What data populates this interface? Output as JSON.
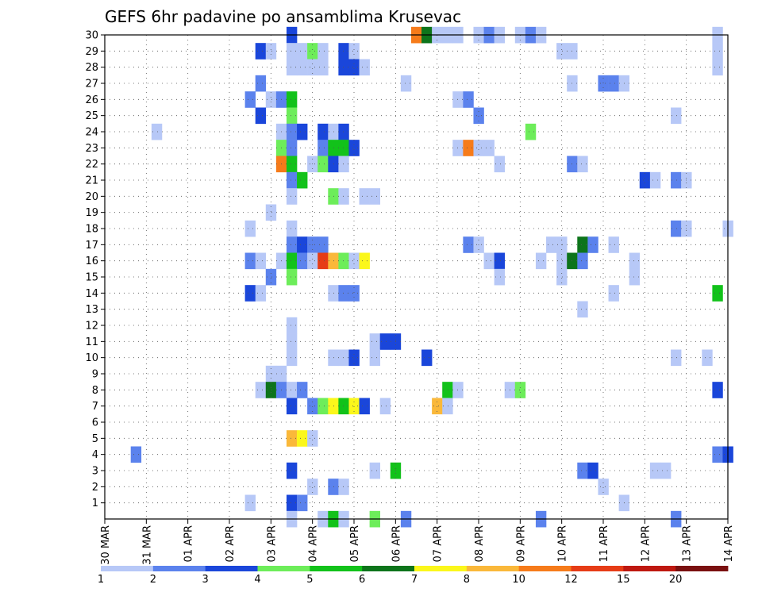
{
  "chart_data": {
    "type": "heatmap",
    "title": "GEFS 6hr padavine po ansamblima Krusevac",
    "xlabel": "",
    "ylabel": "",
    "grid": true,
    "x_range": [
      0,
      60
    ],
    "y_range": [
      0,
      30
    ],
    "x_ticks": [
      {
        "pos": 0,
        "label": "30 MAR"
      },
      {
        "pos": 4,
        "label": "31 MAR"
      },
      {
        "pos": 8,
        "label": "01 APR"
      },
      {
        "pos": 12,
        "label": "02 APR"
      },
      {
        "pos": 16,
        "label": "03 APR"
      },
      {
        "pos": 20,
        "label": "04 APR"
      },
      {
        "pos": 24,
        "label": "05 APR"
      },
      {
        "pos": 28,
        "label": "06 APR"
      },
      {
        "pos": 32,
        "label": "07 APR"
      },
      {
        "pos": 36,
        "label": "08 APR"
      },
      {
        "pos": 40,
        "label": "09 APR"
      },
      {
        "pos": 44,
        "label": "10 APR"
      },
      {
        "pos": 48,
        "label": "11 APR"
      },
      {
        "pos": 52,
        "label": "12 APR"
      },
      {
        "pos": 56,
        "label": "13 APR"
      },
      {
        "pos": 60,
        "label": "14 APR"
      }
    ],
    "y_ticks": [
      "1",
      "2",
      "3",
      "4",
      "5",
      "6",
      "7",
      "8",
      "9",
      "10",
      "11",
      "12",
      "13",
      "14",
      "15",
      "16",
      "17",
      "18",
      "19",
      "20",
      "21",
      "22",
      "23",
      "24",
      "25",
      "26",
      "27",
      "28",
      "29",
      "30"
    ],
    "legend": {
      "placement": "bottom",
      "colors": [
        "#b7c8f7",
        "#5b82ed",
        "#1a46da",
        "#6ded5a",
        "#12c21a",
        "#0d741b",
        "#fbf71b",
        "#fab83a",
        "#f67b1a",
        "#e63c16",
        "#be1810",
        "#7a1010"
      ],
      "labels": [
        "1",
        "2",
        "3",
        "4",
        "5",
        "6",
        "7",
        "8",
        "10",
        "12",
        "15",
        "20"
      ]
    },
    "cells": [
      [
        18,
        30,
        3
      ],
      [
        30,
        30,
        9
      ],
      [
        31,
        30,
        6
      ],
      [
        32,
        30,
        1
      ],
      [
        33,
        30,
        1
      ],
      [
        34,
        30,
        1
      ],
      [
        36,
        30,
        1
      ],
      [
        37,
        30,
        2
      ],
      [
        38,
        30,
        1
      ],
      [
        40,
        30,
        1
      ],
      [
        41,
        30,
        2
      ],
      [
        42,
        30,
        1
      ],
      [
        59,
        30,
        1
      ],
      [
        15,
        29,
        3
      ],
      [
        16,
        29,
        1
      ],
      [
        18,
        29,
        1
      ],
      [
        19,
        29,
        1
      ],
      [
        20,
        29,
        4
      ],
      [
        21,
        29,
        1
      ],
      [
        23,
        29,
        3
      ],
      [
        24,
        29,
        1
      ],
      [
        44,
        29,
        1
      ],
      [
        45,
        29,
        1
      ],
      [
        59,
        29,
        1
      ],
      [
        18,
        28,
        1
      ],
      [
        19,
        28,
        1
      ],
      [
        20,
        28,
        1
      ],
      [
        21,
        28,
        1
      ],
      [
        23,
        28,
        3
      ],
      [
        24,
        28,
        3
      ],
      [
        25,
        28,
        1
      ],
      [
        59,
        28,
        1
      ],
      [
        15,
        27,
        2
      ],
      [
        29,
        27,
        1
      ],
      [
        45,
        27,
        1
      ],
      [
        48,
        27,
        2
      ],
      [
        49,
        27,
        2
      ],
      [
        50,
        27,
        1
      ],
      [
        14,
        26,
        2
      ],
      [
        16,
        26,
        1
      ],
      [
        17,
        26,
        2
      ],
      [
        18,
        26,
        5
      ],
      [
        34,
        26,
        1
      ],
      [
        35,
        26,
        2
      ],
      [
        15,
        25,
        3
      ],
      [
        18,
        25,
        4
      ],
      [
        36,
        25,
        2
      ],
      [
        55,
        25,
        1
      ],
      [
        5,
        24,
        1
      ],
      [
        17,
        24,
        1
      ],
      [
        18,
        24,
        2
      ],
      [
        19,
        24,
        3
      ],
      [
        21,
        24,
        3
      ],
      [
        22,
        24,
        1
      ],
      [
        23,
        24,
        3
      ],
      [
        41,
        24,
        4
      ],
      [
        17,
        23,
        4
      ],
      [
        18,
        23,
        2
      ],
      [
        21,
        23,
        2
      ],
      [
        22,
        23,
        5
      ],
      [
        23,
        23,
        5
      ],
      [
        24,
        23,
        3
      ],
      [
        34,
        23,
        1
      ],
      [
        35,
        23,
        9
      ],
      [
        36,
        23,
        1
      ],
      [
        37,
        23,
        1
      ],
      [
        17,
        22,
        9
      ],
      [
        18,
        22,
        5
      ],
      [
        20,
        22,
        1
      ],
      [
        21,
        22,
        4
      ],
      [
        22,
        22,
        3
      ],
      [
        23,
        22,
        1
      ],
      [
        38,
        22,
        1
      ],
      [
        45,
        22,
        2
      ],
      [
        46,
        22,
        1
      ],
      [
        18,
        21,
        2
      ],
      [
        19,
        21,
        5
      ],
      [
        52,
        21,
        3
      ],
      [
        53,
        21,
        1
      ],
      [
        55,
        21,
        2
      ],
      [
        56,
        21,
        1
      ],
      [
        18,
        20,
        1
      ],
      [
        22,
        20,
        4
      ],
      [
        23,
        20,
        1
      ],
      [
        25,
        20,
        1
      ],
      [
        26,
        20,
        1
      ],
      [
        16,
        19,
        1
      ],
      [
        14,
        18,
        1
      ],
      [
        18,
        18,
        1
      ],
      [
        55,
        18,
        2
      ],
      [
        56,
        18,
        1
      ],
      [
        60,
        18,
        1
      ],
      [
        18,
        17,
        2
      ],
      [
        19,
        17,
        3
      ],
      [
        20,
        17,
        2
      ],
      [
        21,
        17,
        2
      ],
      [
        35,
        17,
        2
      ],
      [
        36,
        17,
        1
      ],
      [
        43,
        17,
        1
      ],
      [
        44,
        17,
        1
      ],
      [
        46,
        17,
        6
      ],
      [
        47,
        17,
        2
      ],
      [
        49,
        17,
        1
      ],
      [
        14,
        16,
        2
      ],
      [
        15,
        16,
        1
      ],
      [
        17,
        16,
        1
      ],
      [
        18,
        16,
        5
      ],
      [
        19,
        16,
        2
      ],
      [
        20,
        16,
        1
      ],
      [
        21,
        16,
        10
      ],
      [
        22,
        16,
        8
      ],
      [
        23,
        16,
        4
      ],
      [
        24,
        16,
        1
      ],
      [
        25,
        16,
        7
      ],
      [
        37,
        16,
        1
      ],
      [
        38,
        16,
        3
      ],
      [
        42,
        16,
        1
      ],
      [
        44,
        16,
        1
      ],
      [
        45,
        16,
        6
      ],
      [
        46,
        16,
        2
      ],
      [
        51,
        16,
        1
      ],
      [
        16,
        15,
        2
      ],
      [
        18,
        15,
        4
      ],
      [
        38,
        15,
        1
      ],
      [
        44,
        15,
        1
      ],
      [
        51,
        15,
        1
      ],
      [
        14,
        14,
        3
      ],
      [
        15,
        14,
        1
      ],
      [
        22,
        14,
        1
      ],
      [
        23,
        14,
        2
      ],
      [
        24,
        14,
        2
      ],
      [
        49,
        14,
        1
      ],
      [
        59,
        14,
        5
      ],
      [
        46,
        13,
        1
      ],
      [
        18,
        12,
        1
      ],
      [
        18,
        11,
        1
      ],
      [
        26,
        11,
        1
      ],
      [
        27,
        11,
        3
      ],
      [
        28,
        11,
        3
      ],
      [
        18,
        10,
        1
      ],
      [
        22,
        10,
        1
      ],
      [
        23,
        10,
        1
      ],
      [
        24,
        10,
        3
      ],
      [
        26,
        10,
        1
      ],
      [
        31,
        10,
        3
      ],
      [
        55,
        10,
        1
      ],
      [
        58,
        10,
        1
      ],
      [
        16,
        9,
        1
      ],
      [
        17,
        9,
        1
      ],
      [
        15,
        8,
        1
      ],
      [
        16,
        8,
        6
      ],
      [
        17,
        8,
        2
      ],
      [
        18,
        8,
        1
      ],
      [
        19,
        8,
        2
      ],
      [
        33,
        8,
        5
      ],
      [
        34,
        8,
        1
      ],
      [
        39,
        8,
        1
      ],
      [
        40,
        8,
        4
      ],
      [
        59,
        8,
        3
      ],
      [
        18,
        7,
        3
      ],
      [
        20,
        7,
        2
      ],
      [
        21,
        7,
        4
      ],
      [
        22,
        7,
        7
      ],
      [
        23,
        7,
        5
      ],
      [
        24,
        7,
        7
      ],
      [
        25,
        7,
        3
      ],
      [
        27,
        7,
        1
      ],
      [
        32,
        7,
        8
      ],
      [
        33,
        7,
        1
      ],
      [
        18,
        5,
        8
      ],
      [
        19,
        5,
        7
      ],
      [
        20,
        5,
        1
      ],
      [
        3,
        4,
        2
      ],
      [
        59,
        4,
        2
      ],
      [
        60,
        4,
        3
      ],
      [
        18,
        3,
        3
      ],
      [
        26,
        3,
        1
      ],
      [
        28,
        3,
        5
      ],
      [
        46,
        3,
        2
      ],
      [
        47,
        3,
        3
      ],
      [
        53,
        3,
        1
      ],
      [
        54,
        3,
        1
      ],
      [
        20,
        2,
        1
      ],
      [
        22,
        2,
        2
      ],
      [
        23,
        2,
        1
      ],
      [
        48,
        2,
        1
      ],
      [
        14,
        1,
        1
      ],
      [
        18,
        1,
        3
      ],
      [
        19,
        1,
        2
      ],
      [
        50,
        1,
        1
      ],
      [
        18,
        0,
        1
      ],
      [
        21,
        0,
        1
      ],
      [
        22,
        0,
        5
      ],
      [
        23,
        0,
        1
      ],
      [
        26,
        0,
        4
      ],
      [
        29,
        0,
        2
      ],
      [
        42,
        0,
        2
      ],
      [
        55,
        0,
        2
      ]
    ]
  }
}
